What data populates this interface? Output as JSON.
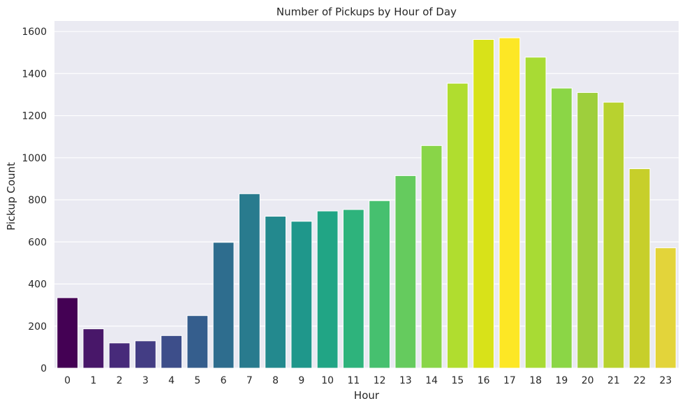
{
  "chart_data": {
    "type": "bar",
    "title": "Number of Pickups by Hour of Day",
    "xlabel": "Hour",
    "ylabel": "Pickup Count",
    "categories": [
      "0",
      "1",
      "2",
      "3",
      "4",
      "5",
      "6",
      "7",
      "8",
      "9",
      "10",
      "11",
      "12",
      "13",
      "14",
      "15",
      "16",
      "17",
      "18",
      "19",
      "20",
      "21",
      "22",
      "23"
    ],
    "values": [
      335,
      187,
      120,
      130,
      155,
      250,
      598,
      829,
      722,
      698,
      747,
      754,
      796,
      915,
      1058,
      1354,
      1562,
      1570,
      1478,
      1331,
      1310,
      1264,
      948,
      572
    ],
    "ylim": [
      0,
      1650
    ],
    "yticks": [
      0,
      200,
      400,
      600,
      800,
      1000,
      1200,
      1400,
      1600
    ],
    "grid": true,
    "palette": "viridis",
    "colors": [
      "#440154",
      "#481769",
      "#472a7a",
      "#433d84",
      "#3d4e8a",
      "#355e8d",
      "#2e6d8e",
      "#297b8e",
      "#23898e",
      "#1f978b",
      "#21a585",
      "#2eb37c",
      "#46c06f",
      "#65cb5e",
      "#89d548",
      "#b0dd2f",
      "#d8e219",
      "#fde725",
      "#a8db34",
      "#8bd646",
      "#9ecf3c",
      "#b8d22f",
      "#c7cf2a",
      "#e3d43a"
    ],
    "background": "#eaeaf2",
    "grid_color": "#ffffff"
  }
}
